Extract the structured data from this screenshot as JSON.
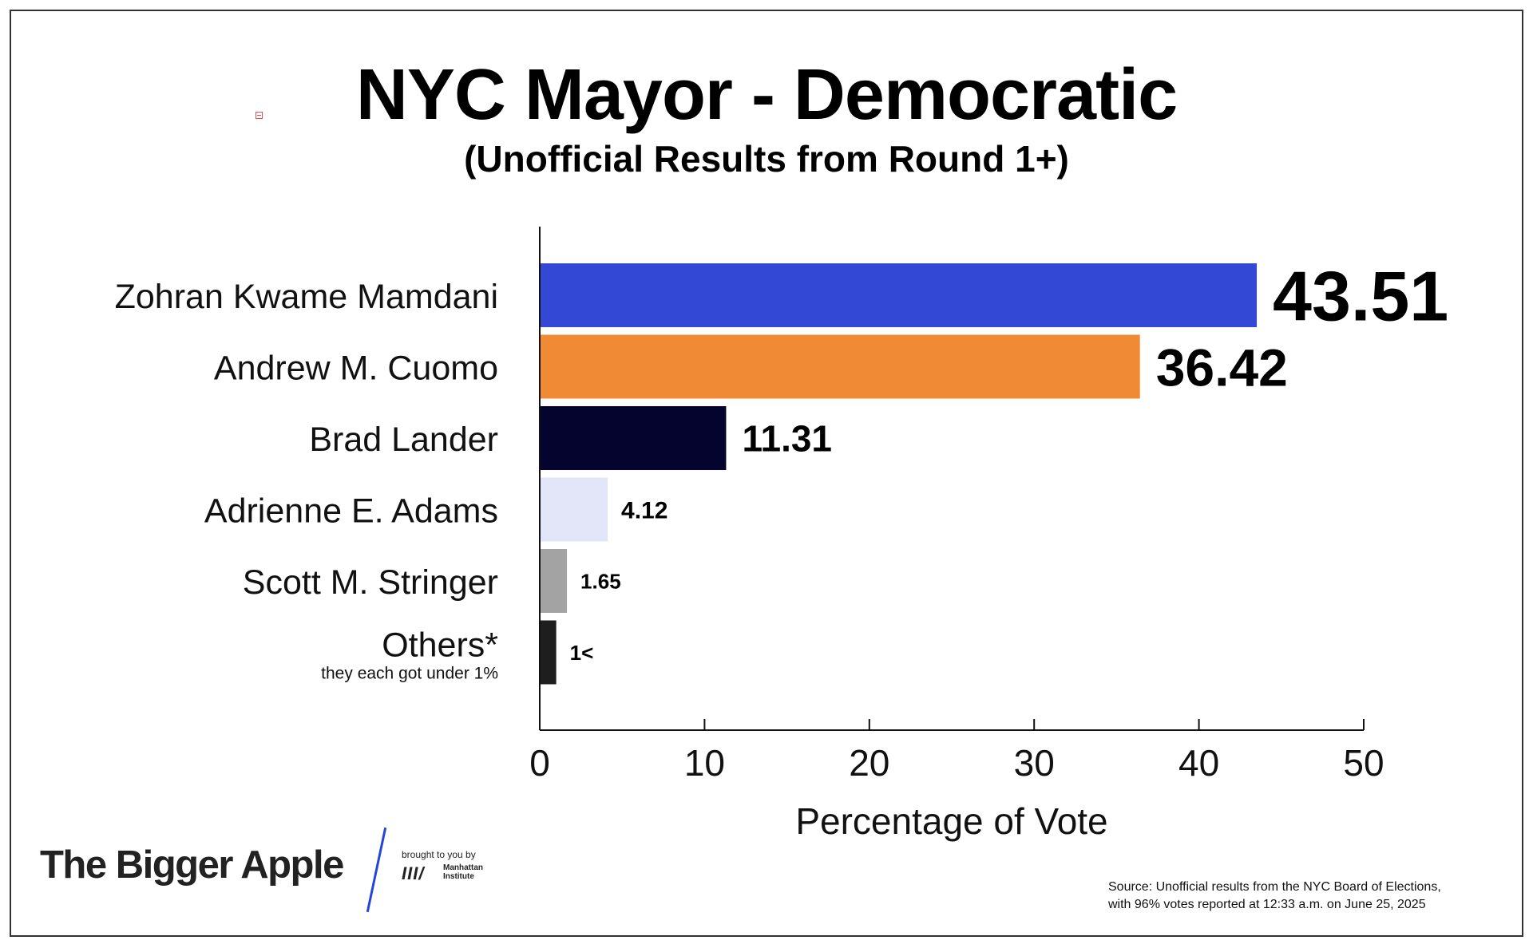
{
  "chart_data": {
    "type": "bar",
    "orientation": "horizontal",
    "title": "NYC Mayor - Democratic",
    "subtitle": "(Unofficial Results from Round 1+)",
    "categories": [
      "Zohran Kwame Mamdani",
      "Andrew M. Cuomo",
      "Brad Lander",
      "Adrienne E. Adams",
      "Scott M. Stringer",
      "Others*"
    ],
    "category_notes": [
      "",
      "",
      "",
      "",
      "",
      "they each got under 1%"
    ],
    "values": [
      43.51,
      36.42,
      11.31,
      4.12,
      1.65,
      1
    ],
    "value_labels": [
      "43.51",
      "36.42",
      "11.31",
      "4.12",
      "1.65",
      "1<"
    ],
    "colors": [
      "#3349d6",
      "#f08a35",
      "#04042e",
      "#e2e6f8",
      "#a3a3a3",
      "#1e1e1e"
    ],
    "xlabel": "Percentage of Vote",
    "ylabel": "",
    "xlim": [
      0,
      50
    ],
    "xticks": [
      0,
      10,
      20,
      30,
      40,
      50
    ],
    "grid": false
  },
  "footer": {
    "brand": "The Bigger Apple",
    "brought_by": "brought to you by",
    "mi_mark": "III/",
    "mi_line1": "Manhattan",
    "mi_line2": "Institute",
    "source_line1": "Source: Unofficial results from the NYC Board of Elections,",
    "source_line2": "with 96% votes reported at 12:33 a.m. on June 25, 2025"
  }
}
